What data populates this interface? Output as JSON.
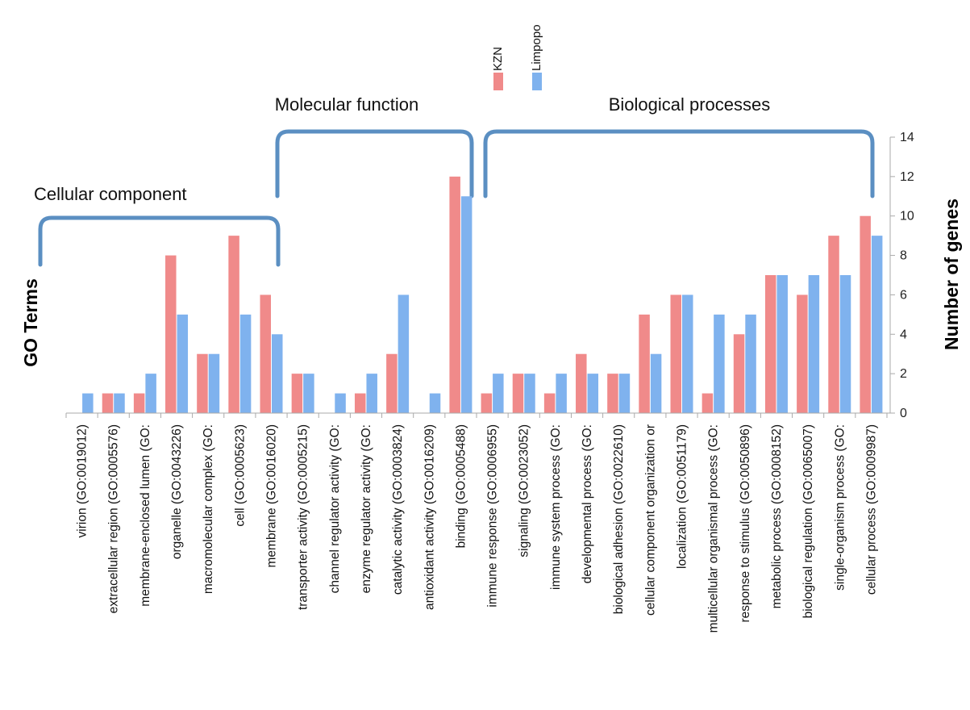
{
  "chart_data": {
    "type": "bar",
    "ylabel": "Number of genes",
    "xlabel": "GO Terms",
    "ylim": [
      0,
      14
    ],
    "yticks": [
      0,
      2,
      4,
      6,
      8,
      10,
      12,
      14
    ],
    "y_axis_side": "right",
    "legend_placement": "top-center",
    "colors": {
      "KZN": "#f08a8a",
      "Limpopo": "#7fb2ee",
      "bracket": "#5b8fc2"
    },
    "categories": [
      "virion (GO:0019012)",
      "extracellular region (GO:0005576)",
      "membrane-enclosed lumen (GO:",
      "organelle (GO:0043226)",
      "macromolecular complex (GO:",
      "cell (GO:0005623)",
      "membrane (GO:0016020)",
      "transporter activity (GO:0005215)",
      "channel regulator activity (GO:",
      "enzyme regulator activity (GO:",
      "catalytic activity (GO:0003824)",
      "antioxidant activity (GO:0016209)",
      "binding (GO:0005488)",
      "immune response (GO:0006955)",
      "signaling (GO:0023052)",
      "immune system process (GO:",
      "developmental process (GO:",
      "biological adhesion (GO:0022610)",
      "cellular component organization or",
      "localization (GO:0051179)",
      "multicellular organismal process (GO:",
      "response to stimulus (GO:0050896)",
      "metabolic process (GO:0008152)",
      "biological regulation (GO:0065007)",
      "single-organism process (GO:",
      "cellular process (GO:0009987)"
    ],
    "series": [
      {
        "name": "KZN",
        "values": [
          0,
          1,
          1,
          8,
          3,
          9,
          6,
          2,
          0,
          1,
          3,
          0,
          12,
          1,
          2,
          1,
          3,
          2,
          5,
          6,
          1,
          4,
          7,
          6,
          9,
          10
        ]
      },
      {
        "name": "Limpopo",
        "values": [
          1,
          1,
          2,
          5,
          3,
          5,
          4,
          2,
          1,
          2,
          6,
          1,
          11,
          2,
          2,
          2,
          2,
          2,
          3,
          6,
          5,
          5,
          7,
          7,
          7,
          9
        ]
      }
    ],
    "groups": [
      {
        "label": "Cellular component",
        "start": 0,
        "end": 6
      },
      {
        "label": "Molecular function",
        "start": 7,
        "end": 12
      },
      {
        "label": "Biological processes",
        "start": 13,
        "end": 25
      }
    ]
  }
}
